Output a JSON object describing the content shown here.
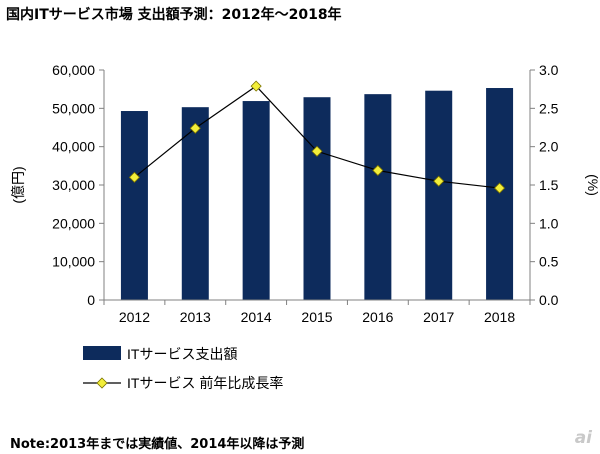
{
  "title": "国内ITサービス市場 支出額予測：2012年〜2018年",
  "note": "Note:2013年までは実績値、2014年以降は予測",
  "watermark": "ai",
  "colors": {
    "bar": "#0d2b5c",
    "line": "#000000",
    "marker_fill": "#f2ee3a",
    "marker_stroke": "#7a7200",
    "axis": "#808080"
  },
  "chart_data": {
    "type": "bar",
    "categories": [
      "2012",
      "2013",
      "2014",
      "2015",
      "2016",
      "2017",
      "2018"
    ],
    "series": [
      {
        "name": "ITサービス支出額",
        "type": "bar",
        "axis": "left",
        "values": [
          49300,
          50300,
          51900,
          52900,
          53700,
          54600,
          55300
        ]
      },
      {
        "name": "ITサービス 前年比成長率",
        "type": "line",
        "axis": "right",
        "marker": "diamond",
        "values": [
          1.6,
          2.24,
          2.79,
          1.94,
          1.69,
          1.55,
          1.46
        ]
      }
    ],
    "ylabel": "(億円)",
    "y2label": "(%)",
    "ylim": [
      0,
      60000
    ],
    "y2lim": [
      0,
      3.0
    ],
    "yticks": [
      "0",
      "10,000",
      "20,000",
      "30,000",
      "40,000",
      "50,000",
      "60,000"
    ],
    "y2ticks": [
      "0.0",
      "0.5",
      "1.0",
      "1.5",
      "2.0",
      "2.5",
      "3.0"
    ],
    "grid": false,
    "legend_position": "bottom"
  }
}
